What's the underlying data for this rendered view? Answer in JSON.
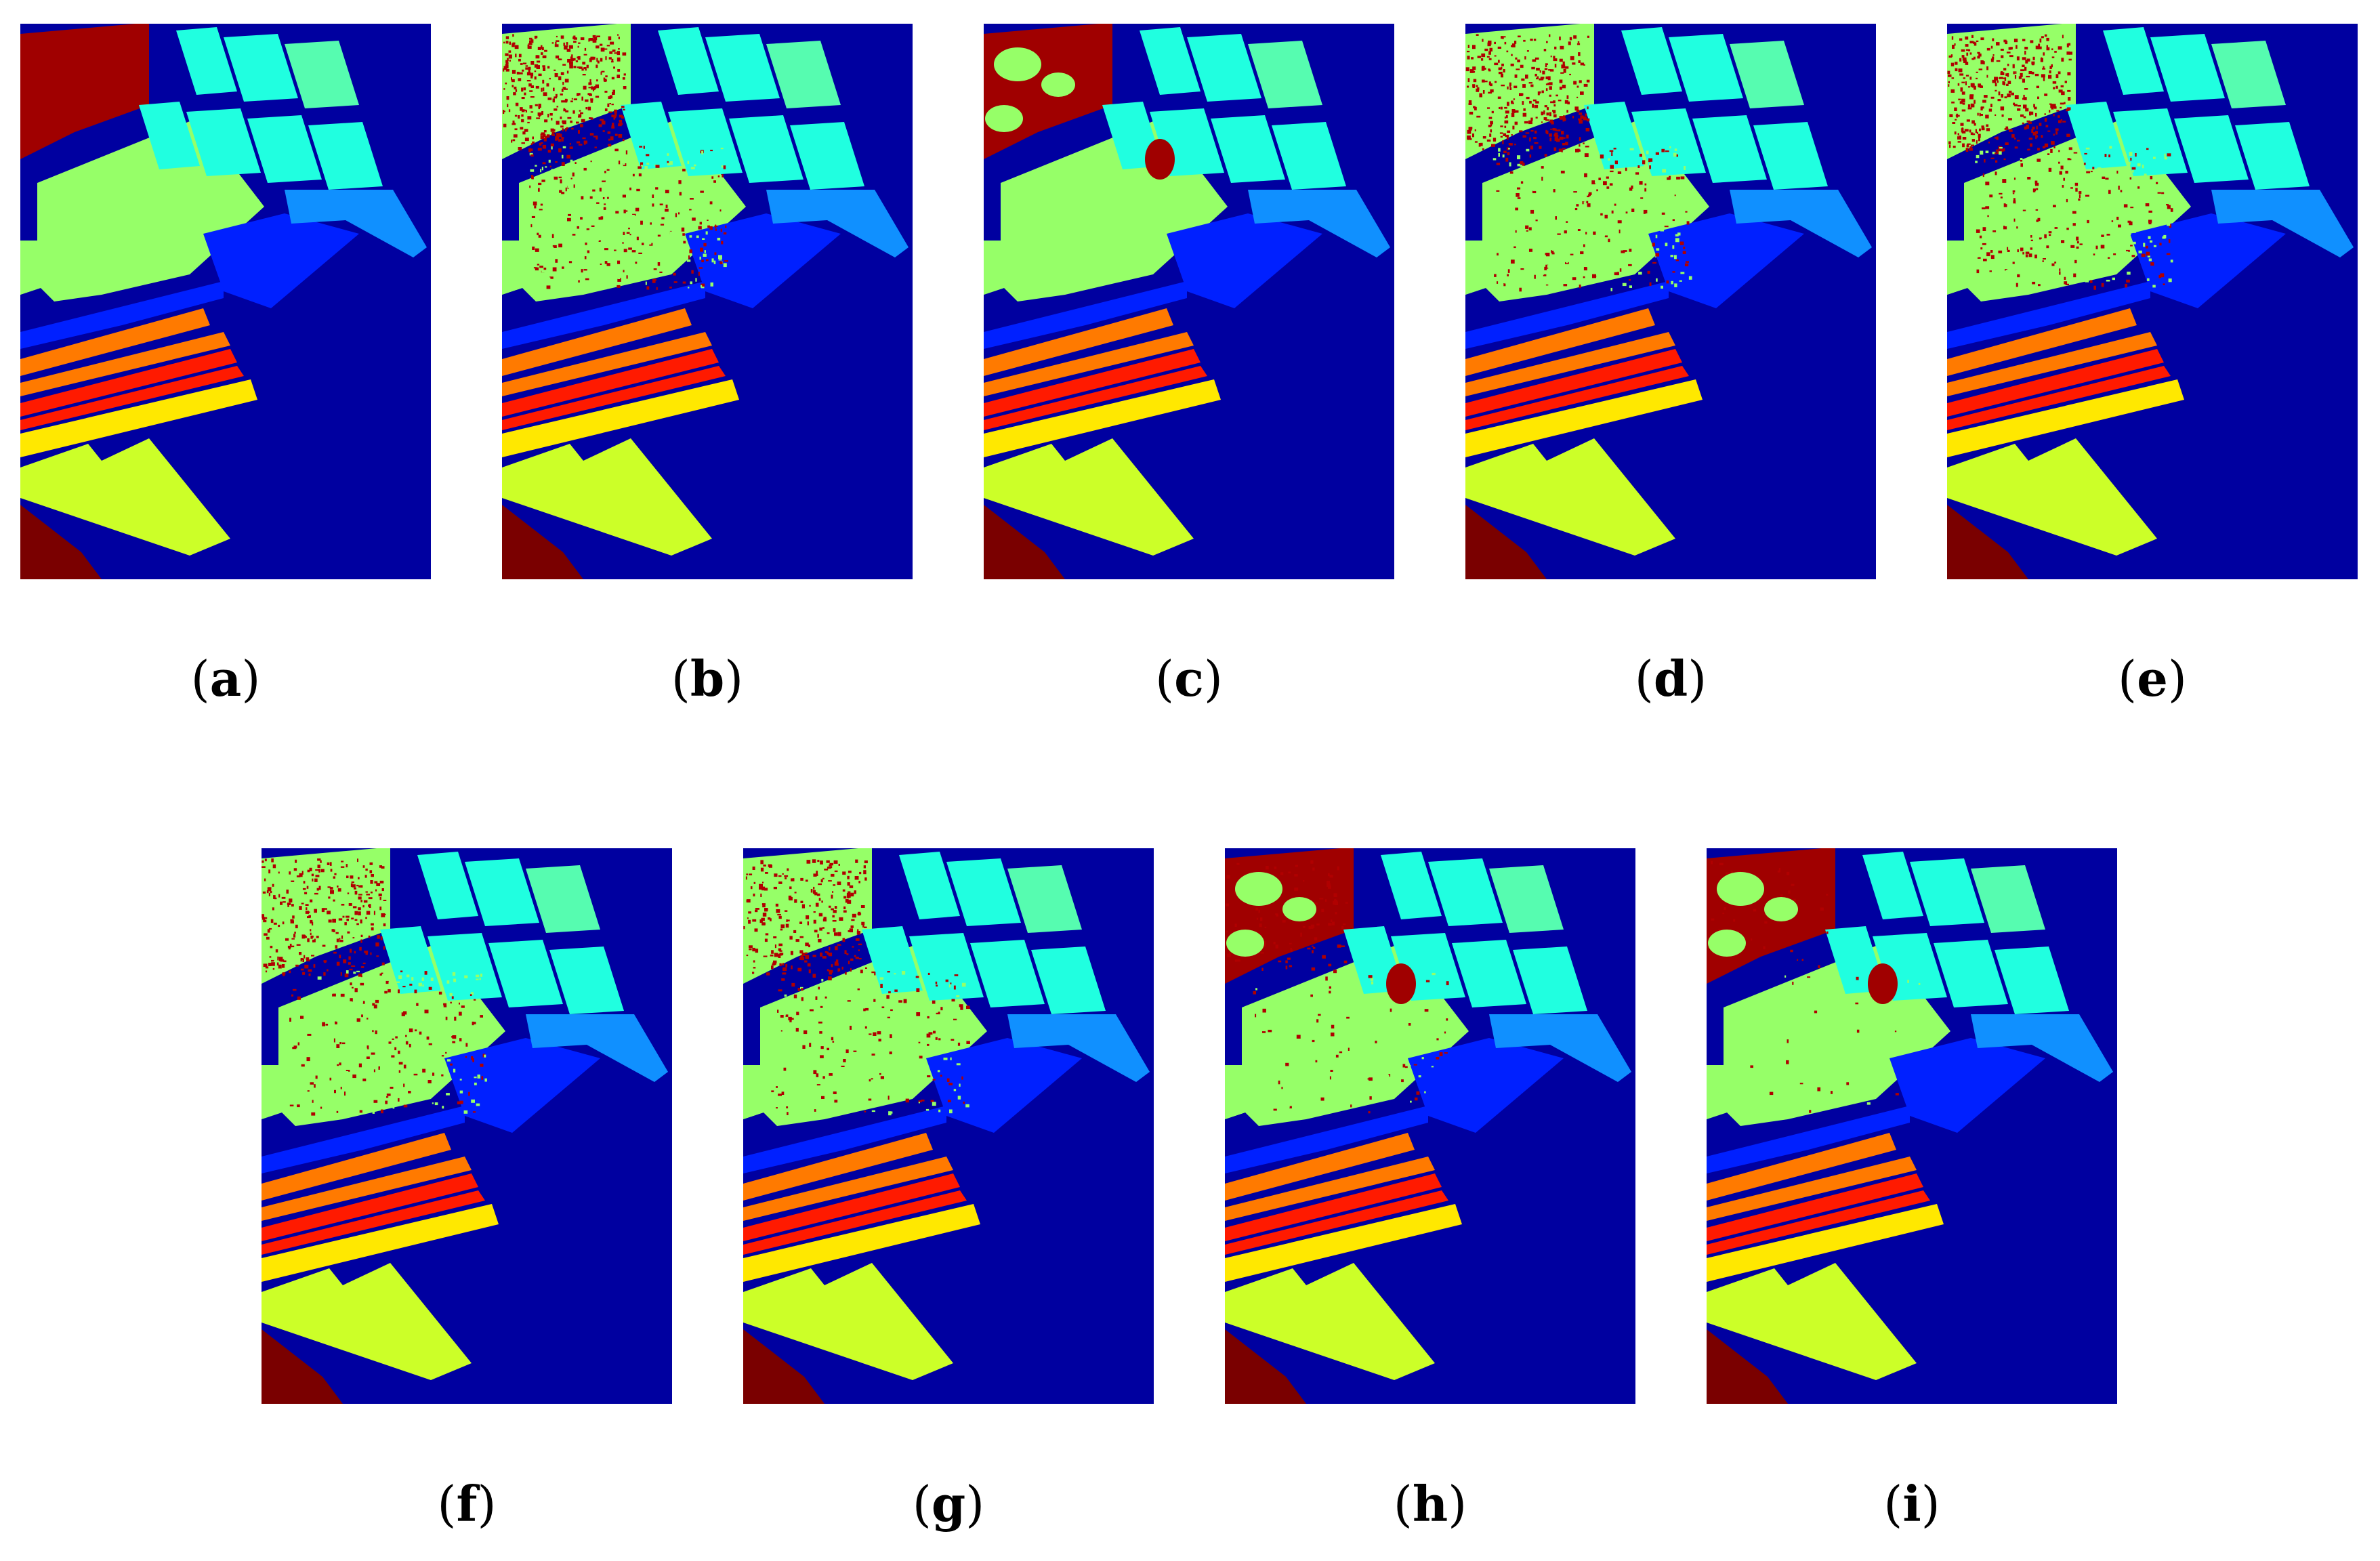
{
  "colors": {
    "background": "#0000a0",
    "classes": {
      "weeds_2": "#a00000",
      "fallow_green": "#96ff68",
      "cyan_field": "#20ffe0",
      "teal_field": "#56fcb0",
      "sky_field": "#1090ff",
      "blue_field": "#0020ff",
      "orange_strip": "#ff7a00",
      "red_strip": "#ff1a00",
      "yellow_strip": "#ffe800",
      "lime_field": "#ccff28",
      "dark_red_corner": "#7a0000"
    },
    "noise": "#b00000"
  },
  "panels": [
    {
      "id": "a",
      "label": "a",
      "noise_level": 0.0,
      "blob": false
    },
    {
      "id": "b",
      "label": "b",
      "noise_level": 0.55,
      "blob": false
    },
    {
      "id": "c",
      "label": "c",
      "noise_level": 0.0,
      "blob": true
    },
    {
      "id": "d",
      "label": "d",
      "noise_level": 0.45,
      "blob": false
    },
    {
      "id": "e",
      "label": "e",
      "noise_level": 0.5,
      "blob": false
    },
    {
      "id": "f",
      "label": "f",
      "noise_level": 0.4,
      "blob": false
    },
    {
      "id": "g",
      "label": "g",
      "noise_level": 0.35,
      "blob": false
    },
    {
      "id": "h",
      "label": "h",
      "noise_level": 0.15,
      "blob": true
    },
    {
      "id": "i",
      "label": "i",
      "noise_level": 0.05,
      "blob": true
    }
  ]
}
